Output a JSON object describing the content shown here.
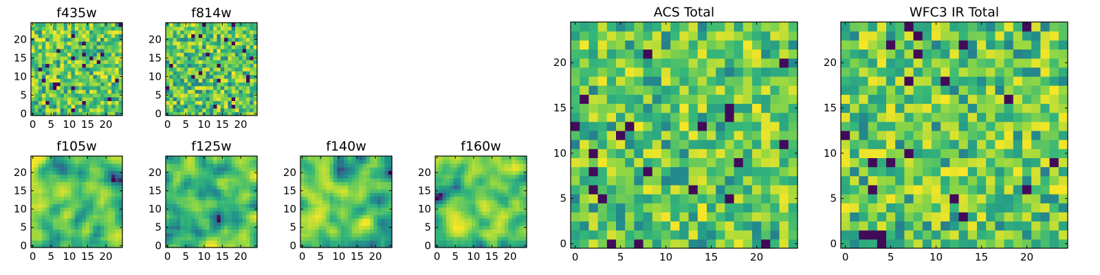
{
  "figure": {
    "layout": "row of 2x4 small panel grid plus two large panels"
  },
  "chart_data": [
    {
      "type": "heatmap",
      "title": "f435w",
      "xlim": [
        -0.5,
        24.5
      ],
      "ylim": [
        -0.5,
        24.5
      ],
      "xticks": [
        0,
        5,
        10,
        15,
        20
      ],
      "yticks": [
        0,
        5,
        10,
        15,
        20
      ],
      "grid": false,
      "colormap": "viridis",
      "texture": "noisy",
      "seed": 11
    },
    {
      "type": "heatmap",
      "title": "f814w",
      "xlim": [
        -0.5,
        24.5
      ],
      "ylim": [
        -0.5,
        24.5
      ],
      "xticks": [
        0,
        5,
        10,
        15,
        20
      ],
      "yticks": [
        0,
        5,
        10,
        15,
        20
      ],
      "grid": false,
      "colormap": "viridis",
      "texture": "noisy",
      "seed": 23
    },
    {
      "type": "heatmap",
      "title": "f105w",
      "xlim": [
        -0.5,
        24.5
      ],
      "ylim": [
        -0.5,
        24.5
      ],
      "xticks": [
        0,
        5,
        10,
        15,
        20
      ],
      "yticks": [
        0,
        5,
        10,
        15,
        20
      ],
      "grid": false,
      "colormap": "viridis",
      "texture": "smooth",
      "seed": 37
    },
    {
      "type": "heatmap",
      "title": "f125w",
      "xlim": [
        -0.5,
        24.5
      ],
      "ylim": [
        -0.5,
        24.5
      ],
      "xticks": [
        0,
        5,
        10,
        15,
        20
      ],
      "yticks": [
        0,
        5,
        10,
        15,
        20
      ],
      "grid": false,
      "colormap": "viridis",
      "texture": "smooth",
      "seed": 41
    },
    {
      "type": "heatmap",
      "title": "f140w",
      "xlim": [
        -0.5,
        24.5
      ],
      "ylim": [
        -0.5,
        24.5
      ],
      "xticks": [
        0,
        5,
        10,
        15,
        20
      ],
      "yticks": [
        0,
        5,
        10,
        15,
        20
      ],
      "grid": false,
      "colormap": "viridis",
      "texture": "smooth",
      "seed": 53
    },
    {
      "type": "heatmap",
      "title": "f160w",
      "xlim": [
        -0.5,
        24.5
      ],
      "ylim": [
        -0.5,
        24.5
      ],
      "xticks": [
        0,
        5,
        10,
        15,
        20
      ],
      "yticks": [
        0,
        5,
        10,
        15,
        20
      ],
      "grid": false,
      "colormap": "viridis",
      "texture": "smooth",
      "seed": 67
    },
    {
      "type": "heatmap",
      "title": "ACS Total",
      "xlim": [
        -0.5,
        24.5
      ],
      "ylim": [
        -0.5,
        24.5
      ],
      "xticks": [
        0,
        5,
        10,
        15,
        20
      ],
      "yticks": [
        0,
        5,
        10,
        15,
        20
      ],
      "grid": false,
      "colormap": "viridis",
      "texture": "noisy",
      "seed": 79
    },
    {
      "type": "heatmap",
      "title": "WFC3 IR Total",
      "xlim": [
        -0.5,
        24.5
      ],
      "ylim": [
        -0.5,
        24.5
      ],
      "xticks": [
        0,
        5,
        10,
        15,
        20
      ],
      "yticks": [
        0,
        5,
        10,
        15,
        20
      ],
      "grid": false,
      "colormap": "viridis",
      "texture": "noisy",
      "seed": 97
    }
  ],
  "colormap_stops": [
    "#440154",
    "#31688e",
    "#21918c",
    "#35b779",
    "#90d743",
    "#fde725"
  ]
}
